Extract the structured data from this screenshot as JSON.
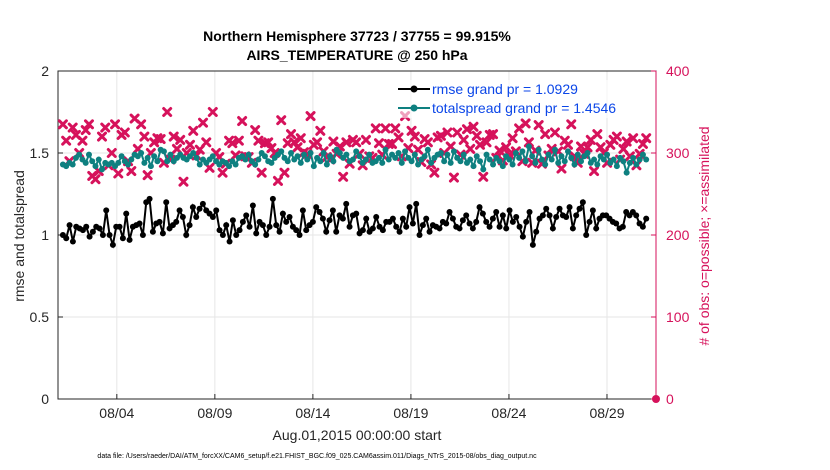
{
  "chart_data": {
    "type": "line",
    "title": "Northern Hemisphere 37723 / 37755 = 99.915%",
    "subtitle": "AIRS_TEMPERATURE @ 250 hPa",
    "xlabel": "Aug.01,2015 00:00:00 start",
    "ylabel": "rmse and totalspread",
    "ylabel_right": "# of obs: o=possible; ×=assimilated",
    "x_ticks": [
      "08/04",
      "08/09",
      "08/14",
      "08/19",
      "08/24",
      "08/29"
    ],
    "x_tick_days": [
      3,
      8,
      13,
      18,
      23,
      28
    ],
    "xlim_days": [
      0,
      30.5
    ],
    "y_ticks": [
      "0",
      "0.5",
      "1",
      "1.5",
      "2"
    ],
    "ylim": [
      0,
      2
    ],
    "y2_ticks": [
      "0",
      "100",
      "200",
      "300",
      "400"
    ],
    "y2lim": [
      0,
      400
    ],
    "grid": true,
    "legend_position": "top-right",
    "footer": "data file: /Users/raeder/DAI/ATM_forcXX/CAM6_setup/f.e21.FHIST_BGC.f09_025.CAM6assim.011/Diags_NTrS_2015-08/obs_diag_output.nc",
    "colors": {
      "rmse": "#000000",
      "spread": "#0e8080",
      "obs": "#d6125b",
      "legend_text": "#0b46e8"
    },
    "series": [
      {
        "name": "rmse grand pr = 1.0929",
        "axis": "left",
        "values": [
          1.0,
          0.98,
          1.06,
          0.96,
          1.05,
          1.04,
          1.03,
          1.05,
          0.99,
          1.02,
          1.05,
          1.04,
          1.0,
          1.15,
          1.0,
          0.94,
          1.05,
          1.05,
          0.98,
          1.13,
          0.97,
          1.05,
          1.06,
          1.07,
          1.0,
          1.2,
          1.22,
          1.02,
          1.07,
          1.08,
          1.01,
          1.2,
          1.04,
          1.06,
          1.08,
          1.15,
          1.11,
          1.0,
          1.06,
          1.17,
          1.11,
          1.16,
          1.19,
          1.15,
          1.13,
          1.11,
          1.15,
          1.03,
          1.0,
          1.06,
          0.96,
          1.09,
          1.0,
          1.03,
          1.08,
          1.12,
          1.05,
          1.18,
          1.01,
          1.08,
          1.06,
          1.0,
          1.05,
          1.22,
          1.06,
          1.02,
          1.13,
          1.08,
          1.11,
          1.05,
          1.03,
          1.0,
          1.15,
          1.03,
          1.06,
          1.08,
          1.17,
          1.14,
          1.1,
          1.02,
          1.09,
          1.15,
          1.02,
          1.12,
          1.1,
          1.19,
          1.05,
          1.12,
          1.13,
          1.01,
          1.03,
          1.1,
          1.02,
          1.04,
          1.11,
          1.05,
          1.03,
          1.08,
          1.08,
          1.1,
          1.05,
          1.02,
          1.1,
          1.05,
          1.17,
          1.07,
          1.19,
          1.0,
          1.06,
          1.1,
          1.02,
          1.06,
          1.05,
          1.04,
          1.08,
          1.07,
          1.14,
          1.1,
          1.05,
          1.04,
          1.09,
          1.12,
          1.07,
          1.04,
          1.08,
          1.17,
          1.13,
          1.08,
          1.05,
          1.1,
          1.14,
          1.05,
          1.12,
          1.04,
          1.15,
          1.08,
          1.11,
          1.05,
          0.99,
          1.08,
          1.14,
          0.94,
          1.02,
          1.1,
          1.12,
          1.16,
          1.12,
          1.04,
          1.11,
          1.16,
          1.12,
          1.11,
          1.17,
          1.04,
          1.12,
          1.16,
          1.2,
          1.0,
          1.08,
          1.15,
          1.04,
          1.1,
          1.12,
          1.12,
          1.1,
          1.08,
          1.07,
          1.04,
          1.05,
          1.14,
          1.12,
          1.14,
          1.12,
          1.07,
          1.05,
          1.1
        ]
      },
      {
        "name": "totalspread grand pr = 1.4546",
        "axis": "left",
        "values": [
          1.43,
          1.42,
          1.44,
          1.43,
          1.47,
          1.49,
          1.46,
          1.44,
          1.49,
          1.45,
          1.42,
          1.46,
          1.4,
          1.44,
          1.43,
          1.44,
          1.42,
          1.44,
          1.48,
          1.45,
          1.43,
          1.46,
          1.49,
          1.48,
          1.5,
          1.44,
          1.47,
          1.42,
          1.48,
          1.45,
          1.52,
          1.51,
          1.45,
          1.49,
          1.45,
          1.47,
          1.49,
          1.47,
          1.46,
          1.48,
          1.5,
          1.47,
          1.43,
          1.46,
          1.44,
          1.46,
          1.48,
          1.45,
          1.43,
          1.45,
          1.44,
          1.42,
          1.45,
          1.43,
          1.47,
          1.48,
          1.46,
          1.49,
          1.45,
          1.43,
          1.46,
          1.5,
          1.48,
          1.45,
          1.44,
          1.47,
          1.49,
          1.51,
          1.47,
          1.45,
          1.5,
          1.46,
          1.48,
          1.44,
          1.49,
          1.46,
          1.5,
          1.42,
          1.47,
          1.45,
          1.5,
          1.43,
          1.48,
          1.45,
          1.52,
          1.5,
          1.47,
          1.49,
          1.45,
          1.46,
          1.51,
          1.48,
          1.44,
          1.46,
          1.49,
          1.44,
          1.45,
          1.47,
          1.44,
          1.52,
          1.46,
          1.49,
          1.47,
          1.5,
          1.44,
          1.51,
          1.47,
          1.45,
          1.49,
          1.43,
          1.46,
          1.48,
          1.52,
          1.44,
          1.47,
          1.49,
          1.5,
          1.45,
          1.49,
          1.44,
          1.51,
          1.47,
          1.45,
          1.49,
          1.44,
          1.46,
          1.42,
          1.48,
          1.45,
          1.4,
          1.49,
          1.46,
          1.43,
          1.47,
          1.45,
          1.42,
          1.48,
          1.46,
          1.43,
          1.5,
          1.47,
          1.51,
          1.45,
          1.54,
          1.48,
          1.44,
          1.52,
          1.46,
          1.43,
          1.49,
          1.46,
          1.52,
          1.44,
          1.48,
          1.45,
          1.51,
          1.47,
          1.43,
          1.49,
          1.45,
          1.48,
          1.5,
          1.44,
          1.46,
          1.43,
          1.48,
          1.46,
          1.49,
          1.44,
          1.46,
          1.42,
          1.47,
          1.45,
          1.38,
          1.44,
          1.47,
          1.43,
          1.46,
          1.49,
          1.46
        ]
      },
      {
        "name": "obs possible / assimilated",
        "axis": "right",
        "values": [
          335,
          315,
          290,
          331,
          322,
          300,
          315,
          328,
          335,
          272,
          268,
          278,
          320,
          331,
          285,
          300,
          335,
          275,
          322,
          325,
          290,
          278,
          342,
          305,
          335,
          320,
          273,
          300,
          313,
          318,
          317,
          288,
          350,
          292,
          320,
          305,
          316,
          265,
          300,
          310,
          327,
          297,
          304,
          337,
          313,
          282,
          350,
          300,
          295,
          276,
          287,
          315,
          312,
          297,
          315,
          339,
          296,
          295,
          288,
          328,
          315,
          276,
          312,
          313,
          306,
          300,
          266,
          340,
          276,
          312,
          323,
          313,
          307,
          318,
          301,
          299,
          345,
          310,
          313,
          327,
          302,
          295,
          292,
          314,
          299,
          308,
          271,
          313,
          287,
          316,
          313,
          299,
          285,
          316,
          296,
          294,
          330,
          312,
          298,
          330,
          311,
          311,
          330,
          319,
          296,
          345,
          306,
          327,
          320,
          304,
          289,
          317,
          313,
          286,
          276,
          319,
          321,
          300,
          325,
          308,
          270,
          325,
          298,
          316,
          329,
          305,
          332,
          321,
          310,
          271,
          313,
          322,
          323,
          294,
          303,
          291,
          307,
          298,
          318,
          302,
          330,
          290,
          336,
          313,
          288,
          303,
          334,
          287,
          323,
          297,
          305,
          325,
          302,
          281,
          315,
          310,
          335,
          296,
          288,
          308,
          299,
          307,
          316,
          278,
          323,
          307,
          300,
          288,
          310,
          316,
          320,
          292,
          305,
          314,
          296,
          318,
          285,
          299,
          311,
          318
        ]
      }
    ]
  }
}
